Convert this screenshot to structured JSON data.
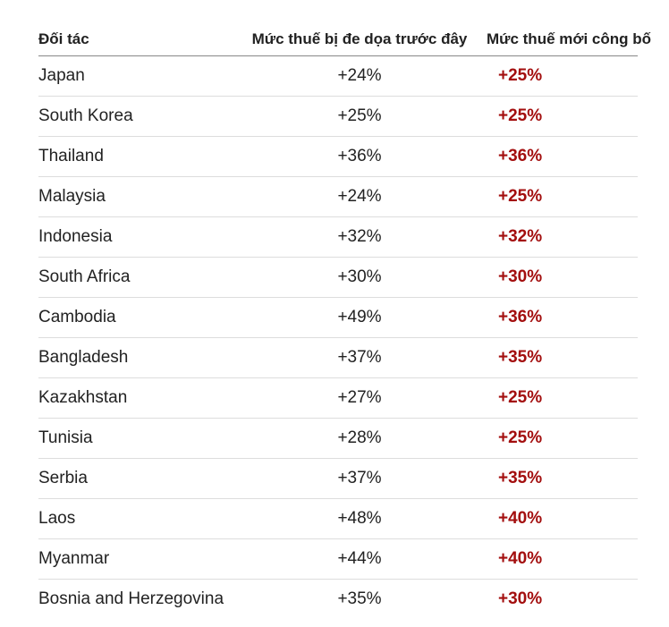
{
  "headers": {
    "partner": "Đối tác",
    "previous": "Mức thuế bị đe dọa trước đây",
    "new": "Mức thuế mới công bố"
  },
  "colors": {
    "new_rate": "#a30e0e",
    "text": "#222222",
    "divider": "#dddddd"
  },
  "rows": [
    {
      "partner": "Japan",
      "previous": "+24%",
      "new": "+25%"
    },
    {
      "partner": "South Korea",
      "previous": "+25%",
      "new": "+25%"
    },
    {
      "partner": "Thailand",
      "previous": "+36%",
      "new": "+36%"
    },
    {
      "partner": "Malaysia",
      "previous": "+24%",
      "new": "+25%"
    },
    {
      "partner": "Indonesia",
      "previous": "+32%",
      "new": "+32%"
    },
    {
      "partner": "South Africa",
      "previous": "+30%",
      "new": "+30%"
    },
    {
      "partner": "Cambodia",
      "previous": "+49%",
      "new": "+36%"
    },
    {
      "partner": "Bangladesh",
      "previous": "+37%",
      "new": "+35%"
    },
    {
      "partner": "Kazakhstan",
      "previous": "+27%",
      "new": "+25%"
    },
    {
      "partner": "Tunisia",
      "previous": "+28%",
      "new": "+25%"
    },
    {
      "partner": "Serbia",
      "previous": "+37%",
      "new": "+35%"
    },
    {
      "partner": "Laos",
      "previous": "+48%",
      "new": "+40%"
    },
    {
      "partner": "Myanmar",
      "previous": "+44%",
      "new": "+40%"
    },
    {
      "partner": "Bosnia and Herzegovina",
      "previous": "+35%",
      "new": "+30%"
    }
  ]
}
